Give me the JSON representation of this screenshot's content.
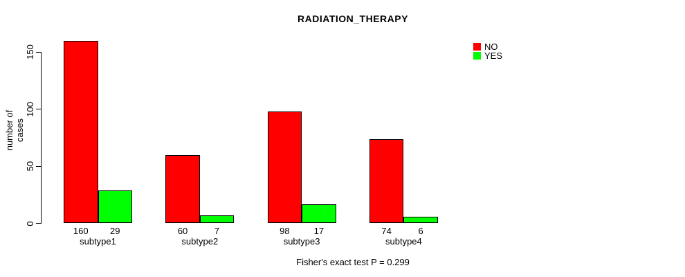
{
  "chart_data": {
    "type": "bar",
    "title": "RADIATION_THERAPY",
    "ylabel": "number of cases",
    "xlabel": "",
    "categories": [
      "subtype1",
      "subtype2",
      "subtype3",
      "subtype4"
    ],
    "series": [
      {
        "name": "NO",
        "color": "#FF0000",
        "values": [
          160,
          60,
          98,
          74
        ]
      },
      {
        "name": "YES",
        "color": "#00FF00",
        "values": [
          29,
          7,
          17,
          6
        ]
      }
    ],
    "bar_value_labels": {
      "NO": [
        160,
        60,
        98,
        74
      ],
      "YES": [
        29,
        7,
        17,
        6
      ]
    },
    "yticks": [
      0,
      50,
      100,
      150
    ],
    "ylim": [
      0,
      160
    ],
    "grid": false,
    "legend_position": "top-right",
    "annotation": "Fisher's exact test P = 0.299"
  }
}
